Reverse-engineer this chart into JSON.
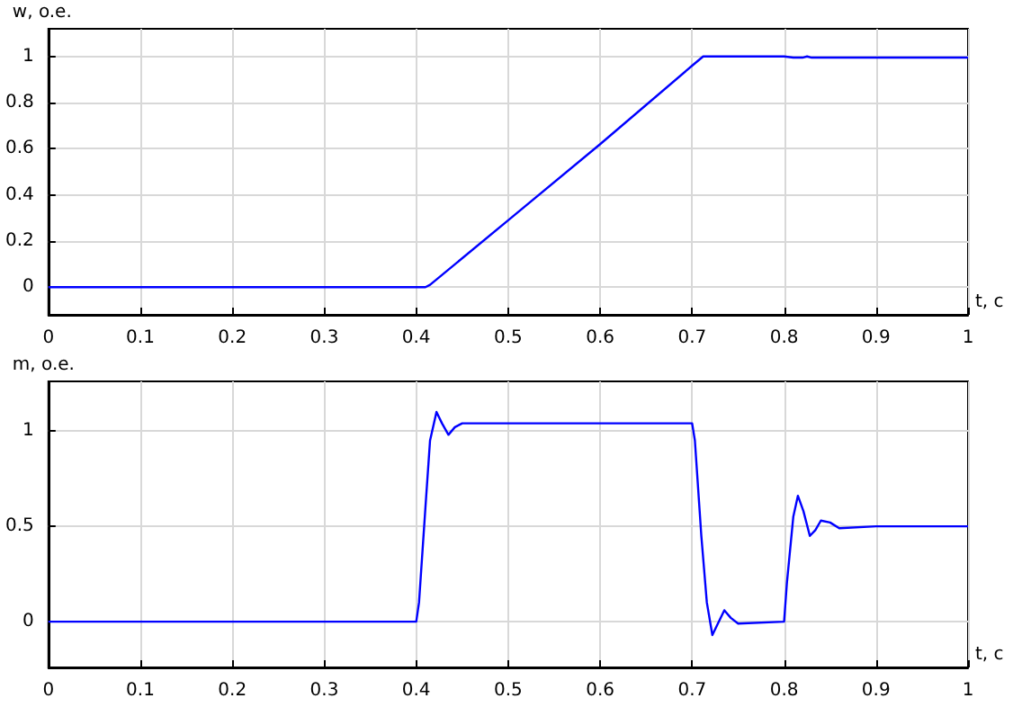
{
  "chart_data": [
    {
      "type": "line",
      "xlabel": "t, c",
      "ylabel": "w, o.e.",
      "xlim": [
        0,
        1
      ],
      "ylim": [
        -0.12,
        1.12
      ],
      "xticks": [
        0,
        0.1,
        0.2,
        0.3,
        0.4,
        0.5,
        0.6,
        0.7,
        0.8,
        0.9,
        1
      ],
      "yticks": [
        0,
        0.2,
        0.4,
        0.6,
        0.8,
        1
      ],
      "grid": true,
      "marker": "none",
      "series": [
        {
          "color": "#0000ff",
          "x": [
            0,
            0.41,
            0.415,
            0.5,
            0.6,
            0.7,
            0.712,
            0.75,
            0.8,
            0.81,
            0.82,
            0.825,
            0.83,
            0.9,
            1
          ],
          "values": [
            0,
            0,
            0.01,
            0.29,
            0.62,
            0.96,
            1,
            1,
            1,
            0.995,
            0.995,
            1,
            0.995,
            0.995,
            0.995
          ]
        }
      ]
    },
    {
      "type": "line",
      "xlabel": "t, c",
      "ylabel": "m, o.e.",
      "xlim": [
        0,
        1
      ],
      "ylim": [
        -0.24,
        1.26
      ],
      "xticks": [
        0,
        0.1,
        0.2,
        0.3,
        0.4,
        0.5,
        0.6,
        0.7,
        0.8,
        0.9,
        1
      ],
      "yticks": [
        0,
        0.5,
        1
      ],
      "grid": true,
      "marker": "none",
      "series": [
        {
          "color": "#0000ff",
          "x": [
            0,
            0.4,
            0.403,
            0.41,
            0.415,
            0.422,
            0.428,
            0.435,
            0.442,
            0.45,
            0.5,
            0.6,
            0.7,
            0.703,
            0.71,
            0.716,
            0.722,
            0.728,
            0.735,
            0.742,
            0.75,
            0.8,
            0.803,
            0.81,
            0.815,
            0.821,
            0.828,
            0.834,
            0.84,
            0.85,
            0.86,
            0.9,
            1
          ],
          "values": [
            0,
            0,
            0.1,
            0.6,
            0.95,
            1.1,
            1.04,
            0.98,
            1.02,
            1.04,
            1.04,
            1.04,
            1.04,
            0.95,
            0.45,
            0.1,
            -0.07,
            -0.01,
            0.06,
            0.02,
            -0.01,
            0,
            0.2,
            0.55,
            0.66,
            0.58,
            0.45,
            0.48,
            0.53,
            0.52,
            0.49,
            0.5,
            0.5
          ]
        }
      ]
    }
  ]
}
